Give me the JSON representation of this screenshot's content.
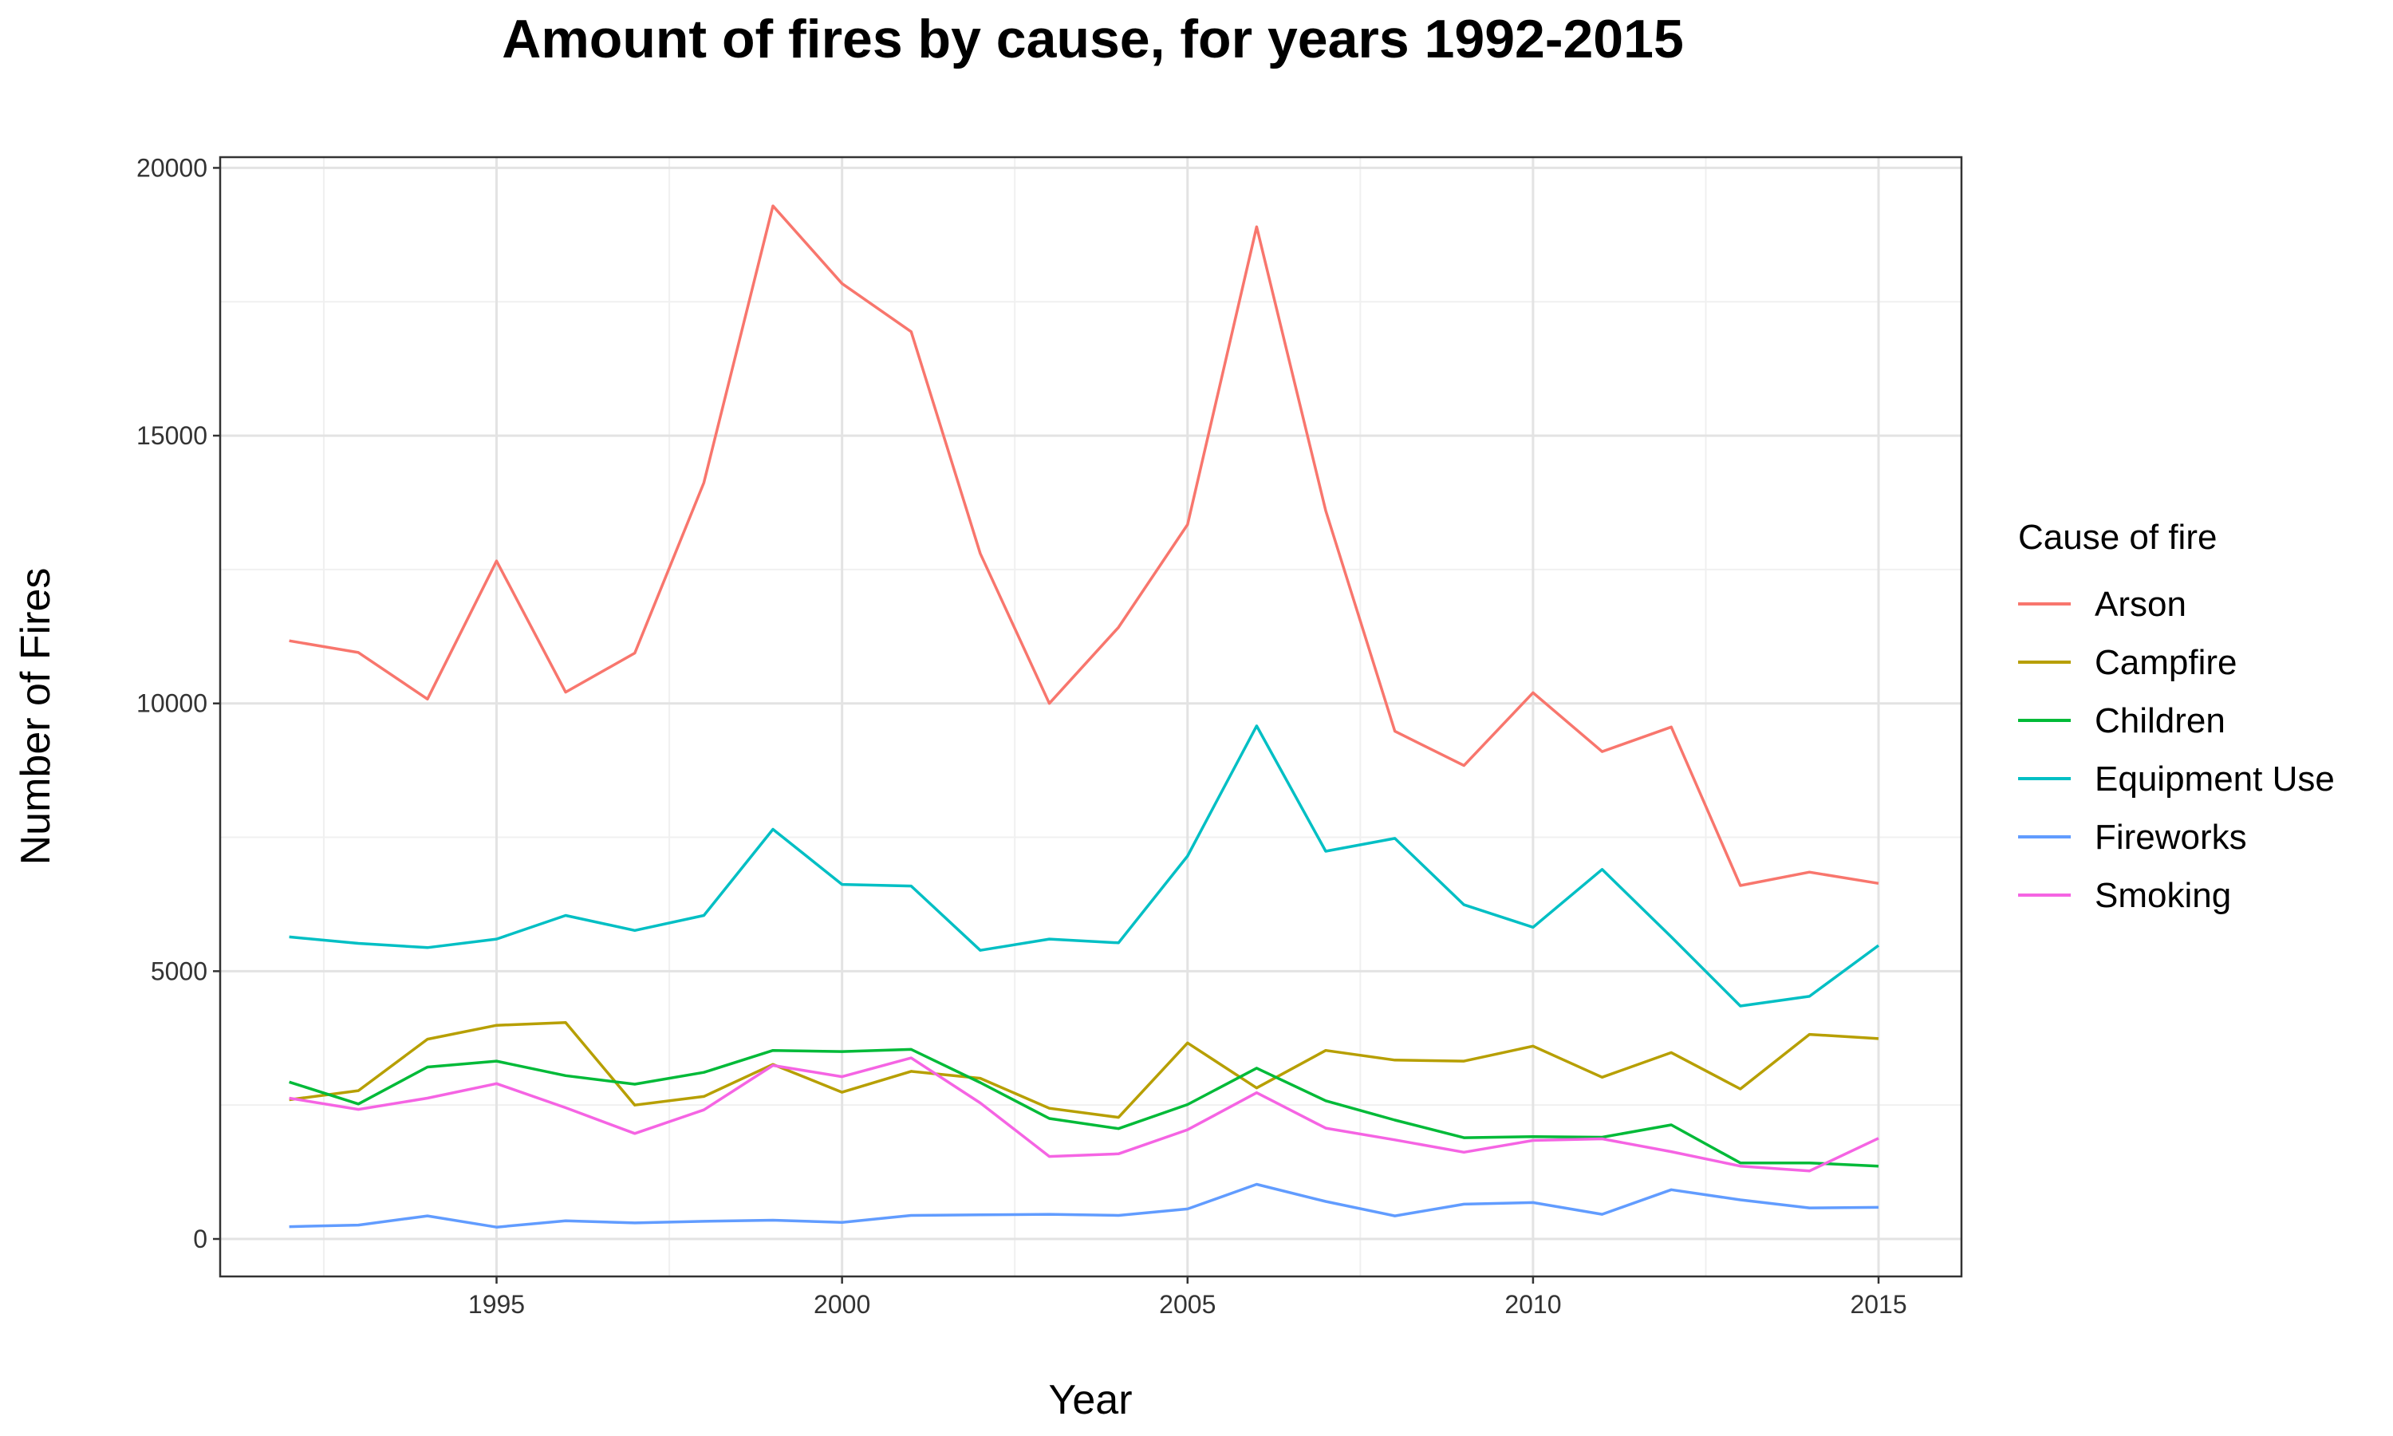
{
  "chart_data": {
    "type": "line",
    "title": "Amount of fires by cause, for years 1992-2015",
    "xlabel": "Year",
    "ylabel": "Number of Fires",
    "xlim": [
      1991,
      2016.2
    ],
    "ylim": [
      -700,
      20200
    ],
    "x_ticks": [
      1995,
      2000,
      2005,
      2010,
      2015
    ],
    "y_ticks": [
      0,
      5000,
      10000,
      15000,
      20000
    ],
    "grid": true,
    "legend": {
      "title": "Cause of fire",
      "placement": "right"
    },
    "x": [
      1992,
      1993,
      1994,
      1995,
      1996,
      1997,
      1998,
      1999,
      2000,
      2001,
      2002,
      2003,
      2004,
      2005,
      2006,
      2007,
      2008,
      2009,
      2010,
      2011,
      2012,
      2013,
      2014,
      2015
    ],
    "series": [
      {
        "name": "Arson",
        "color": "#F8766D",
        "values": [
          11170,
          10950,
          10080,
          12660,
          10210,
          10940,
          14120,
          19290,
          17840,
          16940,
          12800,
          10000,
          11420,
          13340,
          18900,
          13600,
          9480,
          8840,
          10200,
          9100,
          9560,
          6600,
          6850,
          6640
        ]
      },
      {
        "name": "Campfire",
        "color": "#B79F00",
        "values": [
          2600,
          2770,
          3730,
          3990,
          4040,
          2500,
          2660,
          3260,
          2740,
          3130,
          3000,
          2440,
          2270,
          3660,
          2820,
          3520,
          3340,
          3320,
          3600,
          3020,
          3480,
          2800,
          3820,
          3740
        ]
      },
      {
        "name": "Children",
        "color": "#00BA38",
        "values": [
          2930,
          2520,
          3210,
          3320,
          3050,
          2890,
          3110,
          3520,
          3500,
          3540,
          2920,
          2250,
          2060,
          2510,
          3190,
          2580,
          2220,
          1890,
          1910,
          1900,
          2130,
          1420,
          1420,
          1360
        ]
      },
      {
        "name": "Equipment Use",
        "color": "#00BFC4",
        "values": [
          5640,
          5520,
          5440,
          5600,
          6040,
          5760,
          6040,
          7650,
          6620,
          6590,
          5390,
          5600,
          5530,
          7150,
          9580,
          7240,
          7480,
          6240,
          5820,
          6900,
          5640,
          4350,
          4530,
          5480
        ]
      },
      {
        "name": "Fireworks",
        "color": "#619CFF",
        "values": [
          230,
          260,
          430,
          220,
          340,
          300,
          330,
          350,
          310,
          440,
          450,
          460,
          440,
          560,
          1020,
          700,
          430,
          650,
          680,
          460,
          920,
          730,
          580,
          590
        ]
      },
      {
        "name": "Smoking",
        "color": "#F564E3",
        "values": [
          2630,
          2420,
          2630,
          2900,
          2450,
          1970,
          2410,
          3240,
          3030,
          3380,
          2540,
          1540,
          1590,
          2040,
          2730,
          2070,
          1850,
          1620,
          1840,
          1870,
          1630,
          1360,
          1270,
          1880
        ]
      }
    ]
  }
}
